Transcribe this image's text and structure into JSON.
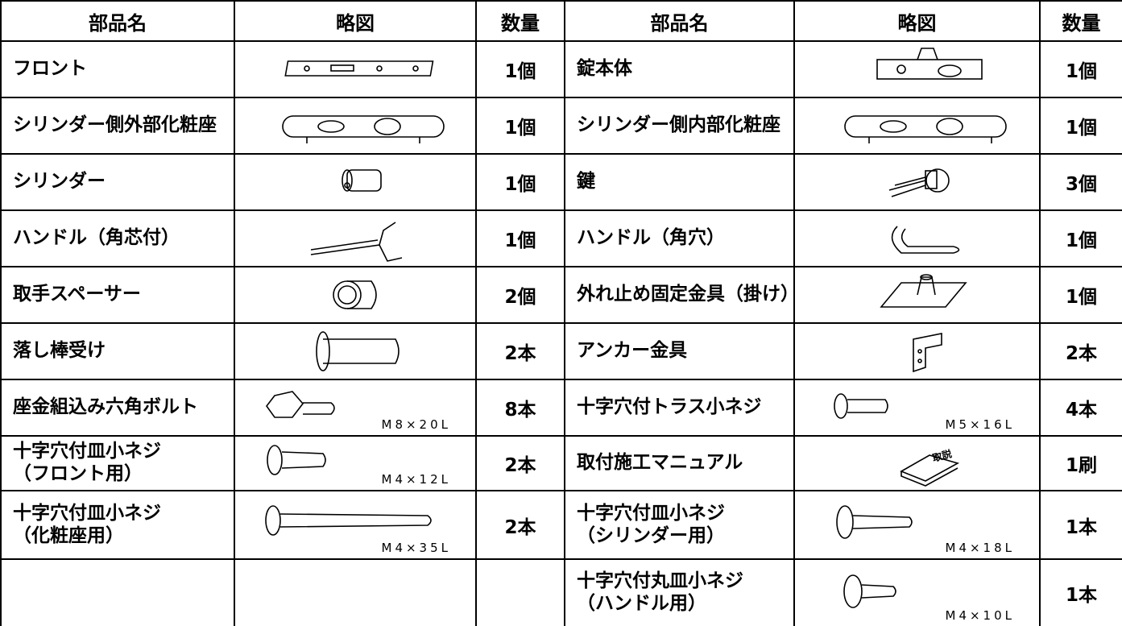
{
  "header": [
    "部品名",
    "略図",
    "数量",
    "部品名",
    "略図",
    "数量"
  ],
  "rows": [
    [
      {
        "name": "フロント",
        "qty": "1個"
      },
      {
        "name": "錠本体",
        "qty": "1個"
      }
    ],
    [
      {
        "name": "シリンダー側外部化粧座",
        "qty": "1個"
      },
      {
        "name": "シリンダー側内部化粧座",
        "qty": "1個"
      }
    ],
    [
      {
        "name": "シリンダー",
        "qty": "1個"
      },
      {
        "name": "鍵",
        "qty": "3個"
      }
    ],
    [
      {
        "name": "ハンドル（角芯付）",
        "qty": "1個"
      },
      {
        "name": "ハンドル（角穴）",
        "qty": "1個"
      }
    ],
    [
      {
        "name": "取手スペーサー",
        "qty": "2個"
      },
      {
        "name": "外れ止め固定金具（掛け）",
        "qty": "1個"
      }
    ],
    [
      {
        "name": "落し棒受け",
        "qty": "2本"
      },
      {
        "name": "アンカー金具",
        "qty": "2本"
      }
    ],
    [
      {
        "name": "座金組込み六角ボルト",
        "qty": "8本",
        "size": "M8×20L"
      },
      {
        "name": "十字穴付トラス小ネジ",
        "qty": "4本",
        "size": "M5×16L"
      }
    ],
    [
      {
        "name": "十字穴付皿小ネジ\n（フロント用）",
        "qty": "2本",
        "size": "M4×12L"
      },
      {
        "name": "取付施工マニュアル",
        "qty": "1刷",
        "icon_text": "取説"
      }
    ],
    [
      {
        "name": "十字穴付皿小ネジ\n（化粧座用）",
        "qty": "2本",
        "size": "M4×35L"
      },
      {
        "name": "十字穴付皿小ネジ\n（シリンダー用）",
        "qty": "1本",
        "size": "M4×18L"
      }
    ],
    [
      null,
      {
        "name": "十字穴付丸皿小ネジ\n（ハンドル用）",
        "qty": "1本",
        "size": "M4×10L"
      }
    ]
  ]
}
